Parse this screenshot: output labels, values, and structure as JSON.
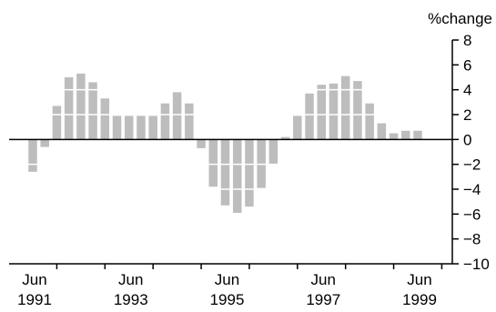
{
  "chart_data": {
    "type": "bar",
    "unit_label": "%change",
    "ylim": [
      -10,
      8
    ],
    "ytick_values": [
      8,
      6,
      4,
      2,
      0,
      -2,
      -4,
      -6,
      -8,
      -10
    ],
    "ytick_labels": [
      "8",
      "6",
      "4",
      "2",
      "0",
      "−2",
      "−4",
      "−6",
      "−8",
      "−10"
    ],
    "xtick_labels": [
      {
        "month": "Jun",
        "year": "1991"
      },
      {
        "month": "Jun",
        "year": "1993"
      },
      {
        "month": "Jun",
        "year": "1995"
      },
      {
        "month": "Jun",
        "year": "1997"
      },
      {
        "month": "Jun",
        "year": "1999"
      }
    ],
    "categories": [
      "Jun 1991",
      "Sep 1991",
      "Dec 1991",
      "Mar 1992",
      "Jun 1992",
      "Sep 1992",
      "Dec 1992",
      "Mar 1993",
      "Jun 1993",
      "Sep 1993",
      "Dec 1993",
      "Mar 1994",
      "Jun 1994",
      "Sep 1994",
      "Dec 1994",
      "Mar 1995",
      "Jun 1995",
      "Sep 1995",
      "Dec 1995",
      "Mar 1996",
      "Jun 1996",
      "Sep 1996",
      "Dec 1996",
      "Mar 1997",
      "Jun 1997",
      "Sep 1997",
      "Dec 1997",
      "Mar 1998",
      "Jun 1998",
      "Sep 1998",
      "Dec 1998",
      "Mar 1999",
      "Jun 1999"
    ],
    "values": [
      -2.6,
      -0.6,
      2.7,
      5.0,
      5.3,
      4.6,
      3.3,
      1.9,
      1.9,
      1.9,
      1.9,
      2.9,
      3.8,
      2.9,
      -0.7,
      -3.8,
      -5.3,
      -5.9,
      -5.4,
      -3.9,
      -2.0,
      0.2,
      1.9,
      3.7,
      4.4,
      4.5,
      5.1,
      4.7,
      2.9,
      1.3,
      0.5,
      0.7,
      0.7
    ],
    "bar_color": "#bdbdbd",
    "grid": false,
    "gridline_color": "#ffffff"
  }
}
